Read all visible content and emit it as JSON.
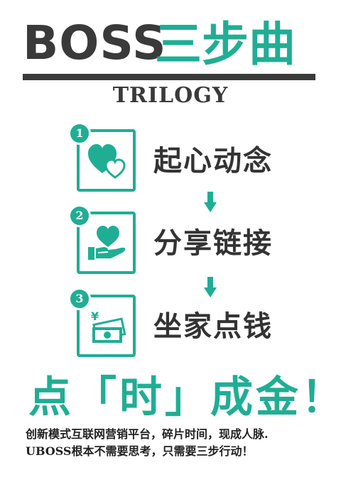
{
  "header": {
    "title_latin": "BOSS",
    "title_chinese": "三步曲",
    "subtitle": "TRILOGY"
  },
  "steps": [
    {
      "number": "1",
      "label": "起心动念",
      "icon": "hearts-icon"
    },
    {
      "number": "2",
      "label": "分享链接",
      "icon": "hand-heart-icon"
    },
    {
      "number": "3",
      "label": "坐家点钱",
      "icon": "money-icon"
    }
  ],
  "icon_currency_symbol": "¥",
  "slogan": "点「时」成金！",
  "description": {
    "line1": "创新模式互联网营销平台，碎片时间，现成人脉.",
    "line2": "UBOSS根本不需要思考，只需要三步行动！"
  },
  "colors": {
    "accent": "#1fae94",
    "dark": "#3a3a3a",
    "background": "#ffffff"
  }
}
